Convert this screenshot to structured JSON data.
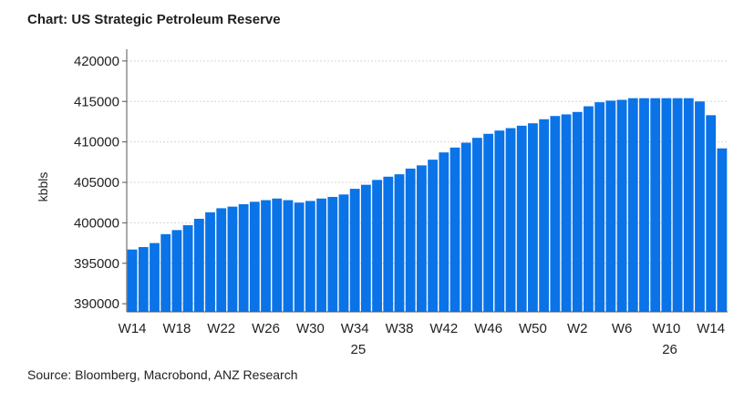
{
  "title": "Chart: US Strategic Petroleum Reserve",
  "source": "Source:  Bloomberg, Macrobond, ANZ Research",
  "chart_data": {
    "type": "bar",
    "title": "Chart: US Strategic Petroleum Reserve",
    "xlabel": "",
    "ylabel": "kbbls",
    "ylim": [
      389000,
      421000
    ],
    "yticks": [
      390000,
      395000,
      400000,
      405000,
      410000,
      415000,
      420000
    ],
    "grid": true,
    "bar_color": "#0a73e8",
    "year_labels": [
      {
        "after_week": "W34",
        "label": "25"
      },
      {
        "after_week": "W10",
        "label": "26"
      }
    ],
    "categories": [
      "W14",
      "W15",
      "W16",
      "W17",
      "W18",
      "W19",
      "W20",
      "W21",
      "W22",
      "W23",
      "W24",
      "W25",
      "W26",
      "W27",
      "W28",
      "W29",
      "W30",
      "W31",
      "W32",
      "W33",
      "W34",
      "W35",
      "W36",
      "W37",
      "W38",
      "W39",
      "W40",
      "W41",
      "W42",
      "W43",
      "W44",
      "W45",
      "W46",
      "W47",
      "W48",
      "W49",
      "W50",
      "W51",
      "W52",
      "W1",
      "W2",
      "W3",
      "W4",
      "W5",
      "W6",
      "W7",
      "W8",
      "W9",
      "W10",
      "W11",
      "W12",
      "W13",
      "W14",
      "W15"
    ],
    "tick_labels": [
      "W14",
      "W18",
      "W22",
      "W26",
      "W30",
      "W34",
      "W38",
      "W42",
      "W46",
      "W50",
      "W2",
      "W6",
      "W10",
      "W14"
    ],
    "values": [
      396700,
      397000,
      397500,
      398600,
      399100,
      399700,
      400500,
      401300,
      401800,
      402000,
      402300,
      402600,
      402800,
      403000,
      402800,
      402500,
      402700,
      403000,
      403200,
      403500,
      404200,
      404700,
      405300,
      405700,
      406000,
      406700,
      407100,
      407800,
      408700,
      409300,
      409900,
      410500,
      411000,
      411400,
      411700,
      412000,
      412300,
      412800,
      413200,
      413400,
      413700,
      414400,
      414900,
      415100,
      415200,
      415400,
      415400,
      415400,
      415400,
      415400,
      415400,
      415000,
      413300,
      409200
    ]
  }
}
